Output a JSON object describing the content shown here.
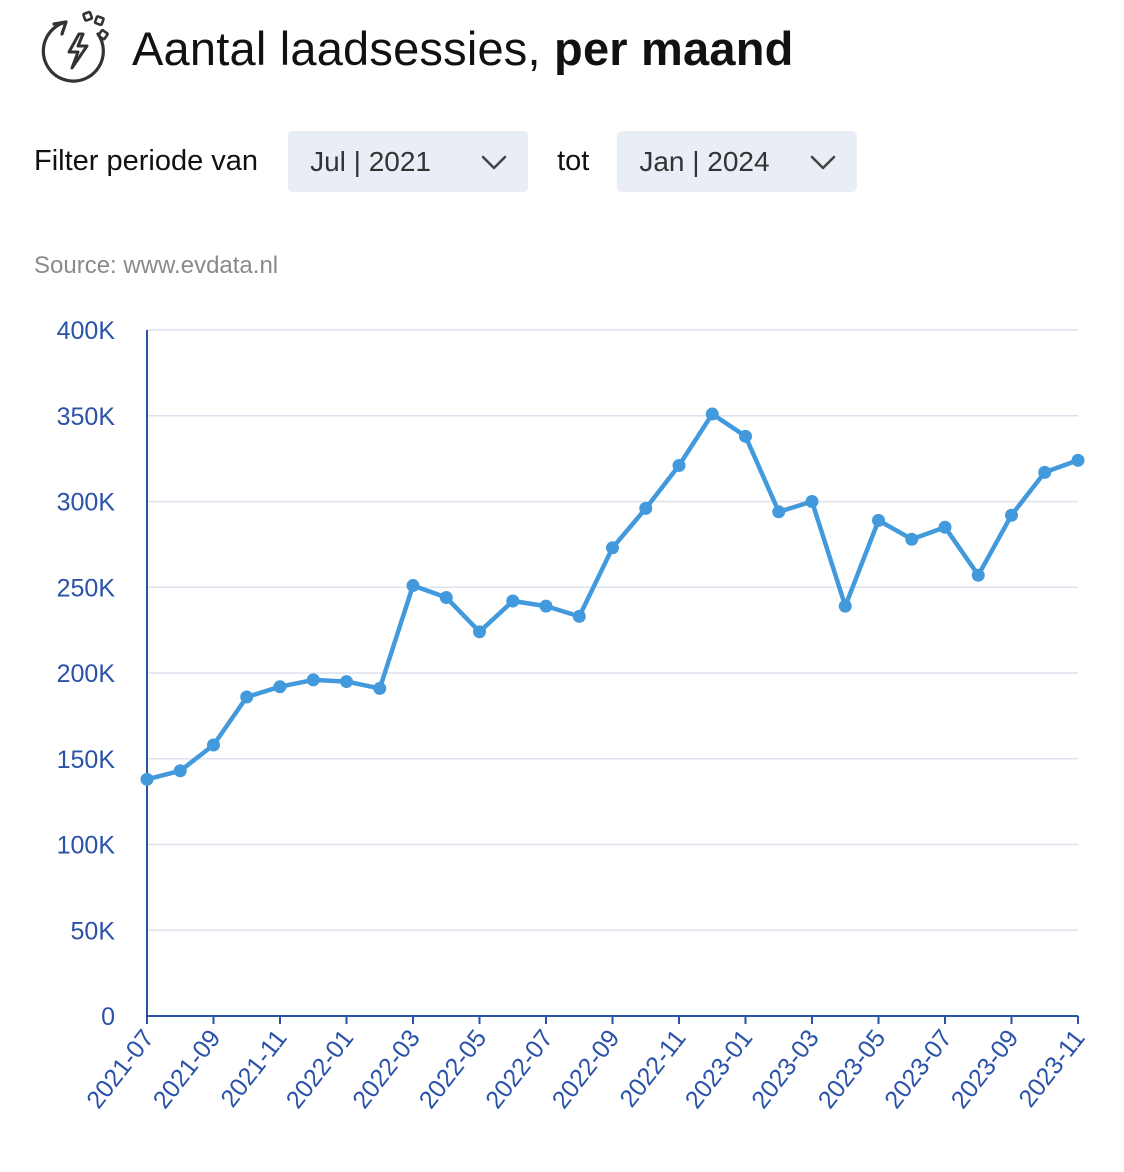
{
  "header": {
    "title_regular": "Aantal laadsessies,",
    "title_bold": "per maand",
    "icon": "ev-charging-refresh-icon"
  },
  "filter": {
    "label": "Filter periode van",
    "from_value": "Jul | 2021",
    "to_label": "tot",
    "to_value": "Jan | 2024"
  },
  "source": "Source: www.evdata.nl",
  "colors": {
    "line": "#4299dc",
    "axis_text": "#2a52a8",
    "grid": "#dfe2ee",
    "axis": "#2a52a8",
    "select_bg": "#e9edf5"
  },
  "chart_data": {
    "type": "line",
    "title": "",
    "xlabel": "",
    "ylabel": "",
    "ylim": [
      0,
      400000
    ],
    "yticks": [
      0,
      50000,
      100000,
      150000,
      200000,
      250000,
      300000,
      350000,
      400000
    ],
    "ytick_labels": [
      "0",
      "50K",
      "100K",
      "150K",
      "200K",
      "250K",
      "300K",
      "350K",
      "400K"
    ],
    "xtick_labels": [
      "2021-07",
      "2021-09",
      "2021-11",
      "2022-01",
      "2022-03",
      "2022-05",
      "2022-07",
      "2022-09",
      "2022-11",
      "2023-01",
      "2023-03",
      "2023-05",
      "2023-07",
      "2023-09",
      "2023-11"
    ],
    "grid": true,
    "legend": "none",
    "x": [
      "2021-07",
      "2021-08",
      "2021-09",
      "2021-10",
      "2021-11",
      "2021-12",
      "2022-01",
      "2022-02",
      "2022-03",
      "2022-04",
      "2022-05",
      "2022-06",
      "2022-07",
      "2022-08",
      "2022-09",
      "2022-10",
      "2022-11",
      "2022-12",
      "2023-01",
      "2023-02",
      "2023-03",
      "2023-04",
      "2023-05",
      "2023-06",
      "2023-07",
      "2023-08",
      "2023-09",
      "2023-10",
      "2023-11"
    ],
    "values": [
      138000,
      143000,
      158000,
      186000,
      192000,
      196000,
      195000,
      191000,
      251000,
      244000,
      224000,
      242000,
      239000,
      233000,
      273000,
      296000,
      321000,
      351000,
      338000,
      294000,
      300000,
      239000,
      289000,
      278000,
      285000,
      257000,
      292000,
      317000,
      324000
    ]
  }
}
